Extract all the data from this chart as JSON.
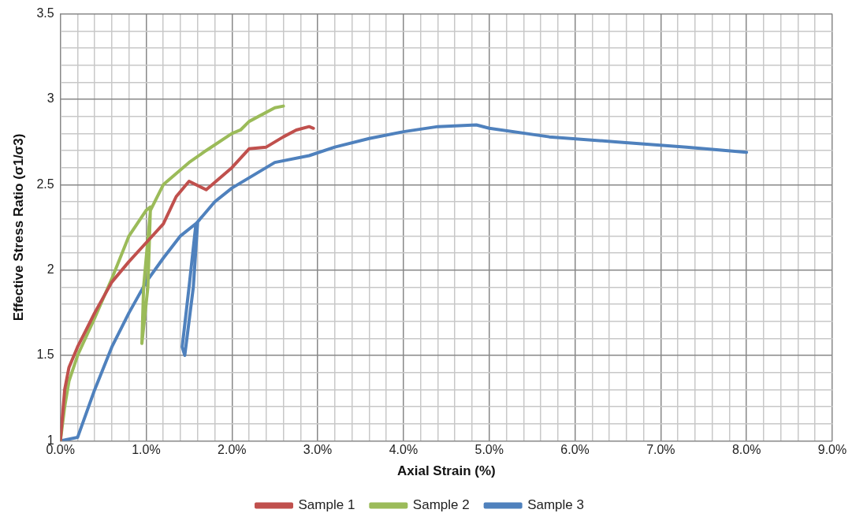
{
  "chart_data": {
    "type": "line",
    "xlabel": "Axial Strain (%)",
    "ylabel": "Effective Stress Ratio (σ1/σ3)",
    "xlim": [
      0,
      9
    ],
    "ylim": [
      1,
      3.5
    ],
    "xticks": [
      {
        "value": 0,
        "label": "0.0%"
      },
      {
        "value": 0.2,
        "label": null
      },
      {
        "value": 0.4,
        "label": null
      },
      {
        "value": 0.6,
        "label": null
      },
      {
        "value": 0.8,
        "label": null
      },
      {
        "value": 1,
        "label": "1.0%"
      },
      {
        "value": 1.2,
        "label": null
      },
      {
        "value": 1.4,
        "label": null
      },
      {
        "value": 1.6,
        "label": null
      },
      {
        "value": 1.8,
        "label": null
      },
      {
        "value": 2,
        "label": "2.0%"
      },
      {
        "value": 2.2,
        "label": null
      },
      {
        "value": 2.4,
        "label": null
      },
      {
        "value": 2.6,
        "label": null
      },
      {
        "value": 2.8,
        "label": null
      },
      {
        "value": 3,
        "label": "3.0%"
      },
      {
        "value": 3.2,
        "label": null
      },
      {
        "value": 3.4,
        "label": null
      },
      {
        "value": 3.6,
        "label": null
      },
      {
        "value": 3.8,
        "label": null
      },
      {
        "value": 4,
        "label": "4.0%"
      },
      {
        "value": 4.2,
        "label": null
      },
      {
        "value": 4.4,
        "label": null
      },
      {
        "value": 4.6,
        "label": null
      },
      {
        "value": 4.8,
        "label": null
      },
      {
        "value": 5,
        "label": "5.0%"
      },
      {
        "value": 5.2,
        "label": null
      },
      {
        "value": 5.4,
        "label": null
      },
      {
        "value": 5.6,
        "label": null
      },
      {
        "value": 5.8,
        "label": null
      },
      {
        "value": 6,
        "label": "6.0%"
      },
      {
        "value": 6.2,
        "label": null
      },
      {
        "value": 6.4,
        "label": null
      },
      {
        "value": 6.6,
        "label": null
      },
      {
        "value": 6.8,
        "label": null
      },
      {
        "value": 7,
        "label": "7.0%"
      },
      {
        "value": 7.2,
        "label": null
      },
      {
        "value": 7.4,
        "label": null
      },
      {
        "value": 7.6,
        "label": null
      },
      {
        "value": 7.8,
        "label": null
      },
      {
        "value": 8,
        "label": "8.0%"
      },
      {
        "value": 8.2,
        "label": null
      },
      {
        "value": 8.4,
        "label": null
      },
      {
        "value": 8.6,
        "label": null
      },
      {
        "value": 8.8,
        "label": null
      },
      {
        "value": 9,
        "label": "9.0%"
      }
    ],
    "yticks": [
      1,
      {
        "value": 1.1,
        "label": null
      },
      {
        "value": 1.2,
        "label": null
      },
      {
        "value": 1.3,
        "label": null
      },
      {
        "value": 1.4,
        "label": null
      },
      1.5,
      {
        "value": 1.6,
        "label": null
      },
      {
        "value": 1.7,
        "label": null
      },
      {
        "value": 1.8,
        "label": null
      },
      {
        "value": 1.9,
        "label": null
      },
      2,
      {
        "value": 2.1,
        "label": null
      },
      {
        "value": 2.2,
        "label": null
      },
      {
        "value": 2.3,
        "label": null
      },
      {
        "value": 2.4,
        "label": null
      },
      2.5,
      {
        "value": 2.6,
        "label": null
      },
      {
        "value": 2.7,
        "label": null
      },
      {
        "value": 2.8,
        "label": null
      },
      {
        "value": 2.9,
        "label": null
      },
      3,
      {
        "value": 3.1,
        "label": null
      },
      {
        "value": 3.2,
        "label": null
      },
      {
        "value": 3.3,
        "label": null
      },
      {
        "value": 3.4,
        "label": null
      },
      3.5
    ],
    "grid": true,
    "legend": "bottom",
    "marker": "none",
    "line_style": "solid",
    "series": [
      {
        "name": "Sample 1",
        "color": "#c0504d",
        "x": [
          0,
          0.05,
          0.1,
          0.2,
          0.3,
          0.4,
          0.6,
          0.8,
          1.0,
          1.2,
          1.35,
          1.5,
          1.7,
          2.0,
          2.2,
          2.4,
          2.6,
          2.75,
          2.9,
          2.95
        ],
        "values": [
          1.0,
          1.3,
          1.43,
          1.55,
          1.65,
          1.75,
          1.93,
          2.05,
          2.16,
          2.27,
          2.43,
          2.52,
          2.47,
          2.6,
          2.71,
          2.72,
          2.78,
          2.82,
          2.84,
          2.83
        ]
      },
      {
        "name": "Sample 2",
        "color": "#9bbb59",
        "x": [
          0,
          0.05,
          0.1,
          0.2,
          0.4,
          0.6,
          0.8,
          1.0,
          1.05,
          1.02,
          0.95,
          0.97,
          1.05,
          1.2,
          1.5,
          1.7,
          2.0,
          2.1,
          2.2,
          2.5,
          2.6
        ],
        "values": [
          1.0,
          1.2,
          1.35,
          1.5,
          1.72,
          1.95,
          2.2,
          2.35,
          2.37,
          1.9,
          1.57,
          1.9,
          2.35,
          2.5,
          2.63,
          2.7,
          2.8,
          2.82,
          2.87,
          2.95,
          2.96
        ]
      },
      {
        "name": "Sample 3",
        "color": "#4f81bd",
        "x": [
          0,
          0.2,
          0.4,
          0.6,
          0.8,
          1.0,
          1.2,
          1.4,
          1.6,
          1.55,
          1.45,
          1.42,
          1.5,
          1.58,
          1.8,
          2.0,
          2.2,
          2.5,
          2.9,
          3.2,
          3.6,
          4.0,
          4.4,
          4.85,
          5.0,
          5.7,
          6.5,
          7.3,
          8.0
        ],
        "values": [
          1.0,
          1.02,
          1.3,
          1.55,
          1.75,
          1.93,
          2.07,
          2.2,
          2.28,
          1.9,
          1.5,
          1.55,
          1.9,
          2.27,
          2.4,
          2.48,
          2.54,
          2.63,
          2.67,
          2.72,
          2.77,
          2.81,
          2.84,
          2.85,
          2.83,
          2.78,
          2.75,
          2.72,
          2.69
        ]
      }
    ]
  }
}
